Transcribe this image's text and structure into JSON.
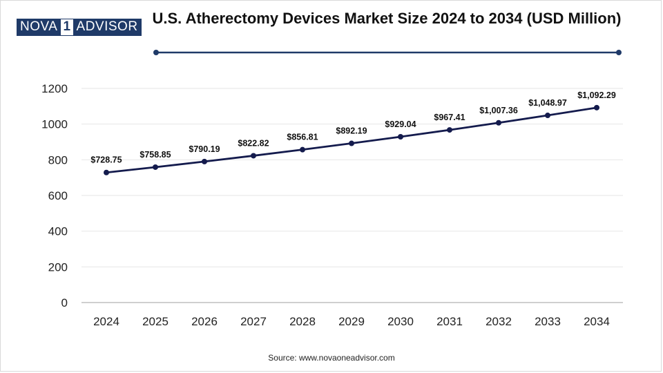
{
  "logo": {
    "part1": "NOVA",
    "part2": "1",
    "part3": "ADVISOR"
  },
  "title": "U.S. Atherectomy Devices Market Size 2024 to 2034 (USD Million)",
  "source": "Source: www.novaoneadvisor.com",
  "colors": {
    "line": "#141b4d",
    "brand": "#1f3a68",
    "grid": "#e6e6e6",
    "axis": "#bfbfbf"
  },
  "chart_data": {
    "type": "line",
    "title": "U.S. Atherectomy Devices Market Size 2024 to 2034 (USD Million)",
    "xlabel": "",
    "ylabel": "",
    "categories": [
      "2024",
      "2025",
      "2026",
      "2027",
      "2028",
      "2029",
      "2030",
      "2031",
      "2032",
      "2033",
      "2034"
    ],
    "series": [
      {
        "values": [
          728.75,
          758.85,
          790.19,
          822.82,
          856.81,
          892.19,
          929.04,
          967.41,
          1007.36,
          1048.97,
          1092.29
        ],
        "labels": [
          "$728.75",
          "$758.85",
          "$790.19",
          "$822.82",
          "$856.81",
          "$892.19",
          "$929.04",
          "$967.41",
          "$1,007.36",
          "$1,048.97",
          "$1,092.29"
        ]
      }
    ],
    "ylim": [
      0,
      1200
    ],
    "yticks": [
      0,
      200,
      400,
      600,
      800,
      1000,
      1200
    ],
    "grid": true,
    "legend": "none"
  }
}
